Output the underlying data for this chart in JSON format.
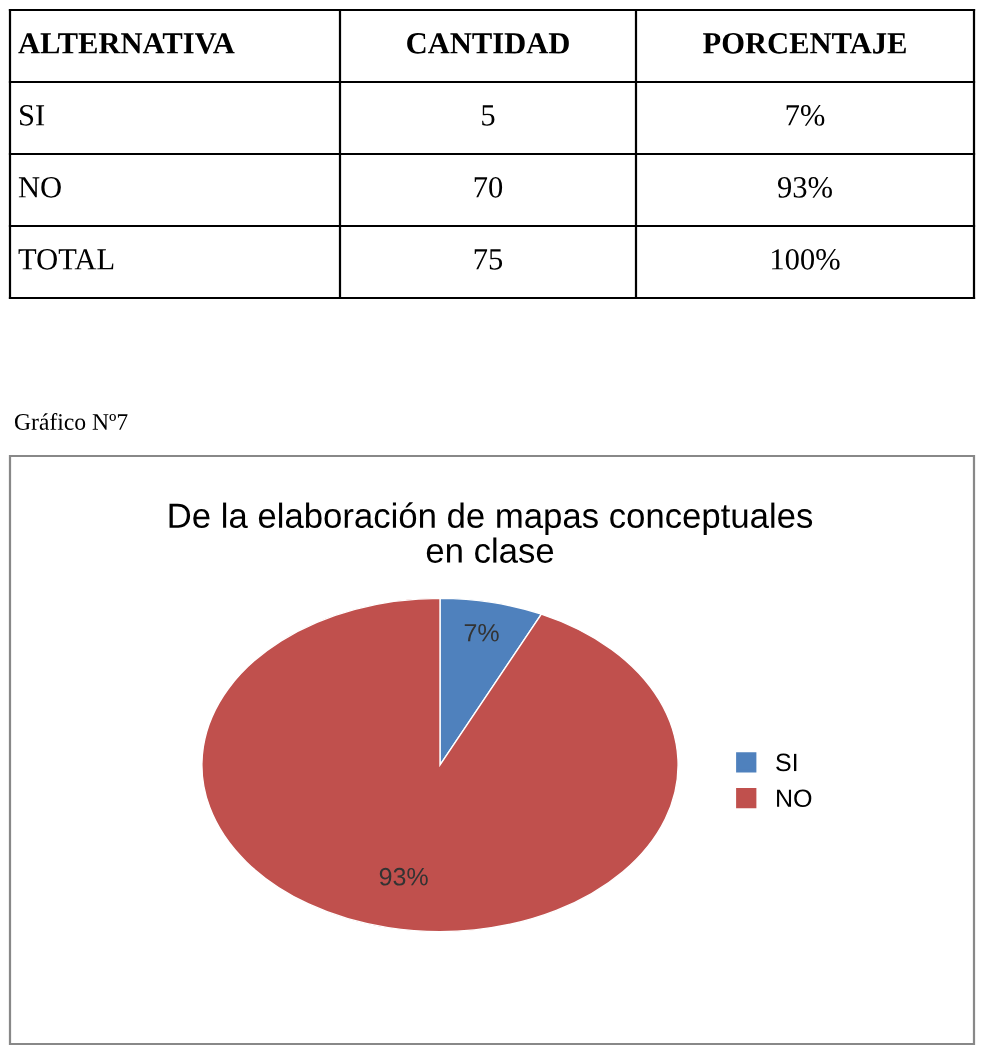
{
  "chart_data": {
    "type": "pie",
    "title": "De la elaboración de mapas conceptuales\nen clase",
    "categories": [
      "SI",
      "NO"
    ],
    "values": [
      7,
      93
    ],
    "value_labels": [
      "7%",
      "93%"
    ],
    "colors": [
      "#4f81bd",
      "#c0504d"
    ],
    "legend": "right",
    "annotations": [
      "ALTERNATIVA",
      "CANTIDAD",
      "PORCENTAJE",
      "TOTAL",
      "75",
      "100%",
      "Gráfico Nº7",
      "5",
      "70"
    ]
  }
}
